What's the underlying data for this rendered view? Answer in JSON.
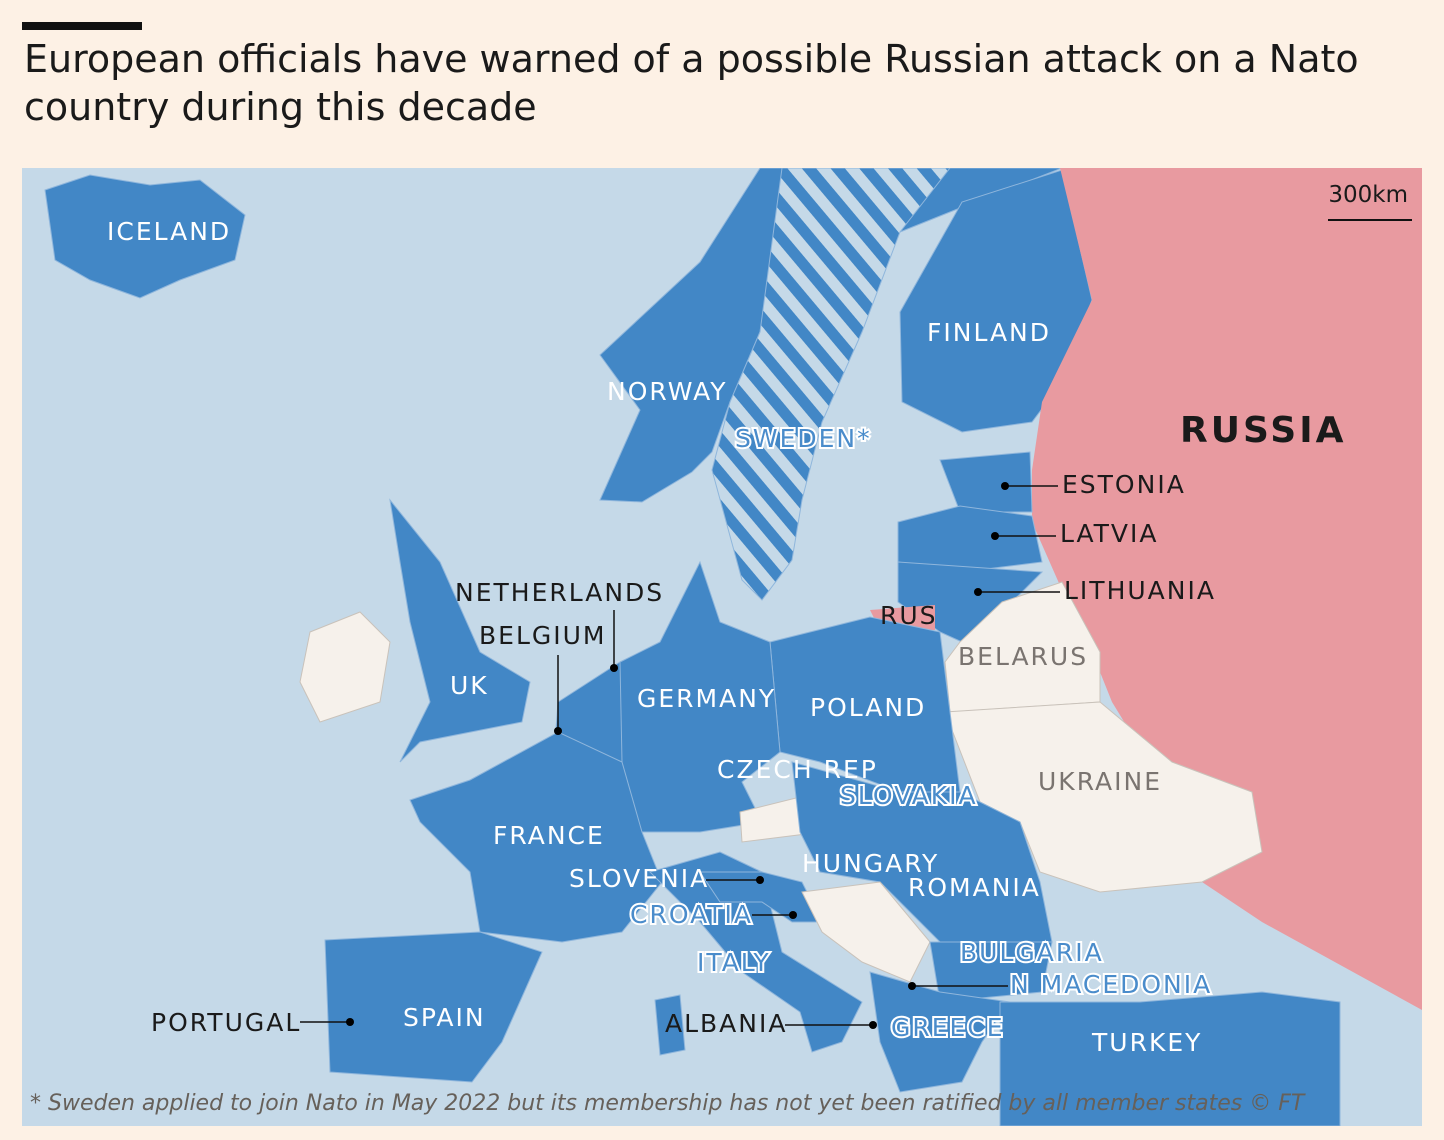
{
  "header": {
    "title_lines": [
      "European officials have warned of a possible Russian attack on a Nato",
      "country during this decade"
    ]
  },
  "map": {
    "scale": "300km",
    "labels": [
      "ICELAND",
      "NORWAY",
      "SWEDEN*",
      "FINLAND",
      "RUSSIA",
      "ESTONIA",
      "LATVIA",
      "LITHUANIA",
      "RUS",
      "BELARUS",
      "NETHERLANDS",
      "BELGIUM",
      "UK",
      "GERMANY",
      "POLAND",
      "CZECH REP",
      "SLOVAKIA",
      "UKRAINE",
      "FRANCE",
      "HUNGARY",
      "SLOVENIA",
      "ROMANIA",
      "CROATIA",
      "ITALY",
      "BULGARIA",
      "N MACEDONIA",
      "PORTUGAL",
      "SPAIN",
      "ALBANIA",
      "GREECE",
      "TURKEY"
    ],
    "footnote": "* Sweden applied to join Nato in May 2022 but its membership has not yet been ratified by all member states © FT"
  }
}
